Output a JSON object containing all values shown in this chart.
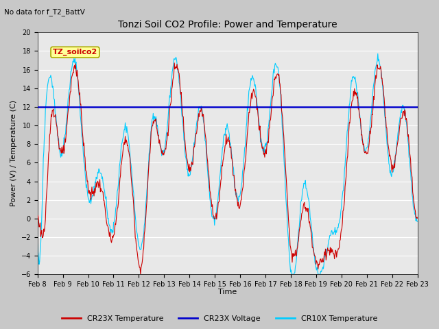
{
  "title": "Tonzi Soil CO2 Profile: Power and Temperature",
  "subtitle": "No data for f_T2_BattV",
  "xlabel": "Time",
  "ylabel": "Power (V) / Temperature (C)",
  "ylim": [
    -6,
    20
  ],
  "yticks": [
    -6,
    -4,
    -2,
    0,
    2,
    4,
    6,
    8,
    10,
    12,
    14,
    16,
    18,
    20
  ],
  "x_labels": [
    "Feb 8",
    "Feb 9",
    "Feb 10",
    "Feb 11",
    "Feb 12",
    "Feb 13",
    "Feb 14",
    "Feb 15",
    "Feb 16",
    "Feb 17",
    "Feb 18",
    "Feb 19",
    "Feb 20",
    "Feb 21",
    "Feb 22",
    "Feb 23"
  ],
  "voltage_value": 12.0,
  "cr23x_color": "#cc0000",
  "cr10x_color": "#00ccff",
  "voltage_color": "#0000cc",
  "fig_bg_color": "#c8c8c8",
  "plot_bg_color": "#e8e8e8",
  "annotation_color": "#cc0000",
  "annotation_bg": "#ffff99",
  "annotation_text": "TZ_soilco2",
  "legend_entries": [
    "CR23X Temperature",
    "CR23X Voltage",
    "CR10X Temperature"
  ],
  "legend_colors": [
    "#cc0000",
    "#0000cc",
    "#00ccff"
  ],
  "grid_color": "#ffffff",
  "title_fontsize": 10,
  "label_fontsize": 8,
  "tick_fontsize": 7
}
